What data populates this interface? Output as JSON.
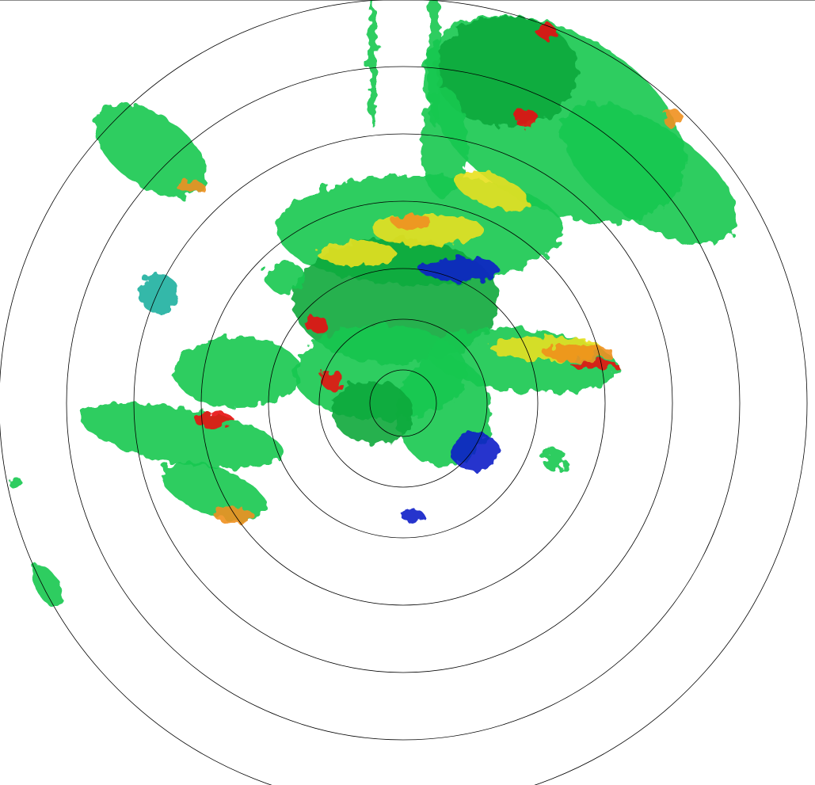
{
  "display": {
    "type": "radar-ppi-reflectivity",
    "range_rings": 7,
    "ring_color": "#000000",
    "background": "#ffffff"
  },
  "colors": {
    "weak": "#1020c8",
    "light": "#14c850",
    "moderate": "#0fa83c",
    "cyan": "#20b0a0",
    "yellow": "#e8e020",
    "orange": "#f09020",
    "red": "#e81010"
  }
}
